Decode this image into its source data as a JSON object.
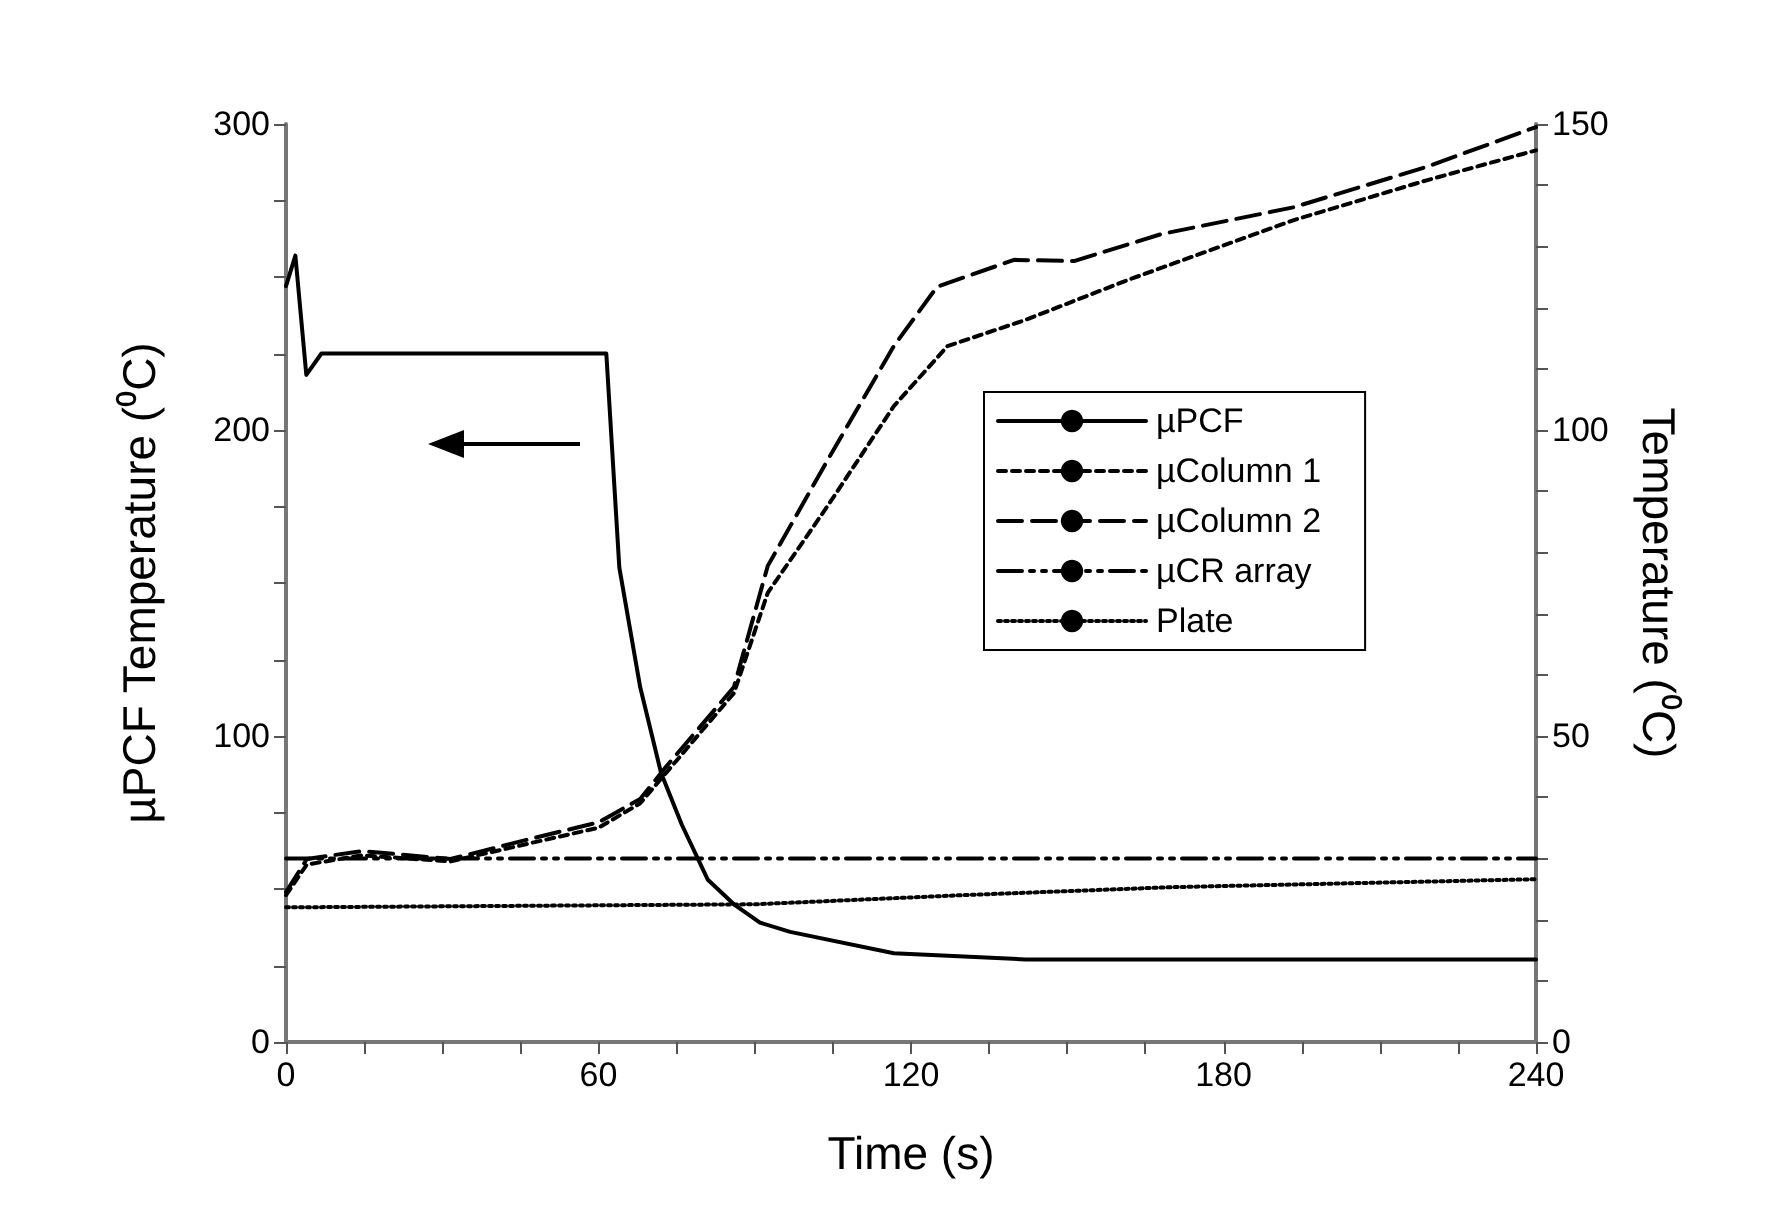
{
  "chart_data": {
    "type": "line",
    "xlabel": "Time (s)",
    "ylabel": "µPCF Temperature (⁰C)",
    "y2label": "Temperature (⁰C)",
    "xlim": [
      0,
      240
    ],
    "xticks": [
      0,
      {
        "value": 15,
        "label": null
      },
      {
        "value": 30,
        "label": null
      },
      {
        "value": 45,
        "label": null
      },
      60,
      {
        "value": 75,
        "label": null
      },
      {
        "value": 90,
        "label": null
      },
      {
        "value": 105,
        "label": null
      },
      120,
      {
        "value": 135,
        "label": null
      },
      {
        "value": 150,
        "label": null
      },
      {
        "value": 165,
        "label": null
      },
      180,
      {
        "value": 195,
        "label": null
      },
      {
        "value": 210,
        "label": null
      },
      {
        "value": 225,
        "label": null
      },
      240
    ],
    "ylim": [
      0,
      300
    ],
    "yticks": [
      0,
      {
        "value": 25,
        "label": null
      },
      {
        "value": 50,
        "label": null
      },
      {
        "value": 75,
        "label": null
      },
      100,
      {
        "value": 125,
        "label": null
      },
      {
        "value": 150,
        "label": null
      },
      {
        "value": 175,
        "label": null
      },
      200,
      {
        "value": 225,
        "label": null
      },
      {
        "value": 250,
        "label": null
      },
      {
        "value": 275,
        "label": null
      },
      300
    ],
    "y2lim": [
      0,
      150
    ],
    "y2ticks": [
      0,
      {
        "value": 10,
        "label": null
      },
      {
        "value": 20,
        "label": null
      },
      {
        "value": 30,
        "label": null
      },
      {
        "value": 40,
        "label": null
      },
      50,
      {
        "value": 60,
        "label": null
      },
      {
        "value": 70,
        "label": null
      },
      {
        "value": 80,
        "label": null
      },
      {
        "value": 90,
        "label": null
      },
      100,
      {
        "value": 110,
        "label": null
      },
      {
        "value": 120,
        "label": null
      },
      {
        "value": 130,
        "label": null
      },
      {
        "value": 140,
        "label": null
      },
      150
    ],
    "grid": false,
    "legend": "right",
    "marker": "none",
    "series": [
      {
        "name": "µPCF",
        "color": "#000000",
        "line_style": "solid",
        "x": [
          0,
          1.8,
          3.9,
          6.8,
          30,
          61.5,
          64,
          68,
          72,
          76,
          81,
          86,
          91,
          96.8,
          116.7,
          142,
          180,
          240
        ],
        "values": [
          247,
          257,
          218,
          225,
          225,
          225,
          155,
          116,
          88,
          71,
          53,
          45,
          39,
          36,
          29,
          27,
          27,
          27
        ]
      },
      {
        "name": "µColumn 1",
        "color": "#000000",
        "line_style": "dashed",
        "axis": "y2",
        "x": [
          0,
          4,
          14.6,
          31.6,
          47,
          60,
          68,
          73,
          86,
          92.5,
          104,
          116.7,
          127,
          142,
          161.6,
          193.5,
          219,
          240
        ],
        "values": [
          24,
          29,
          30.5,
          29.5,
          32.5,
          35,
          39,
          44,
          57,
          73.4,
          87.6,
          103.9,
          113.7,
          118,
          124.5,
          134.3,
          140.8,
          145.7
        ]
      },
      {
        "name": "µColumn 2",
        "color": "#000000",
        "line_style": "longdash",
        "axis": "y2",
        "x": [
          0,
          4,
          14.6,
          31.6,
          47,
          60,
          68,
          73,
          86,
          92.5,
          104,
          116.7,
          125,
          139.8,
          151.3,
          168,
          193.5,
          219,
          240
        ],
        "values": [
          24.5,
          29.9,
          31.2,
          29.9,
          33.2,
          35.9,
          39.7,
          45,
          58,
          77.8,
          95.1,
          113.7,
          123.4,
          127.8,
          127.6,
          132,
          136.4,
          143,
          149.5
        ]
      },
      {
        "name": "µCR array",
        "color": "#000000",
        "line_style": "dashdot",
        "axis": "y2",
        "x": [
          0,
          240
        ],
        "values": [
          30,
          30
        ]
      },
      {
        "name": "Plate",
        "color": "#000000",
        "line_style": "dotted",
        "axis": "y2",
        "x": [
          0,
          90,
          130,
          170,
          240
        ],
        "values": [
          22,
          22.5,
          24,
          25.3,
          26.6
        ]
      }
    ]
  }
}
